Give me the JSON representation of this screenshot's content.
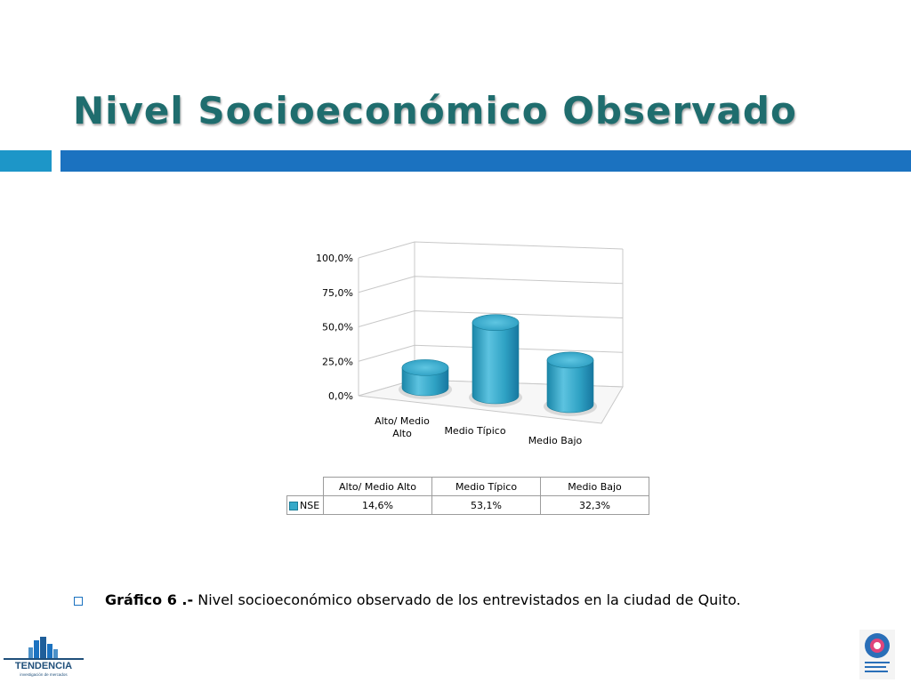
{
  "slide": {
    "title": "Nivel Socioeconómico Observado",
    "caption_bold": "Gráfico 6 .-",
    "caption_text": " Nivel socioeconómico observado de los entrevistados en la ciudad de Quito."
  },
  "logos": {
    "left": "TENDENCIA",
    "left_sub": "investigación de mercados",
    "right": "Empresa Metropolitana Quito Turismo"
  },
  "colors": {
    "accent_dark": "#1b72c0",
    "accent_light": "#1d96c8",
    "bar": "#36a9c9",
    "title": "#1f6d6e"
  },
  "chart_data": {
    "type": "bar",
    "style": "3d-cylinder",
    "categories": [
      "Alto/ Medio Alto",
      "Medio Típico",
      "Medio Bajo"
    ],
    "axis_categories": [
      [
        "Alto/ Medio",
        "Alto"
      ],
      [
        "Medio Típico"
      ],
      [
        "Medio Bajo"
      ]
    ],
    "series": [
      {
        "name": "NSE",
        "values": [
          14.6,
          53.1,
          32.3
        ]
      }
    ],
    "ytick_labels": [
      "0,0%",
      "25,0%",
      "50,0%",
      "75,0%",
      "100,0%"
    ],
    "yticks": [
      0,
      25,
      50,
      75,
      100
    ],
    "ylim": [
      0,
      100
    ],
    "grid": true,
    "data_table": {
      "headers": [
        "Alto/ Medio Alto",
        "Medio Típico",
        "Medio Bajo"
      ],
      "row_label": "NSE",
      "values": [
        "14,6%",
        "53,1%",
        "32,3%"
      ]
    }
  }
}
